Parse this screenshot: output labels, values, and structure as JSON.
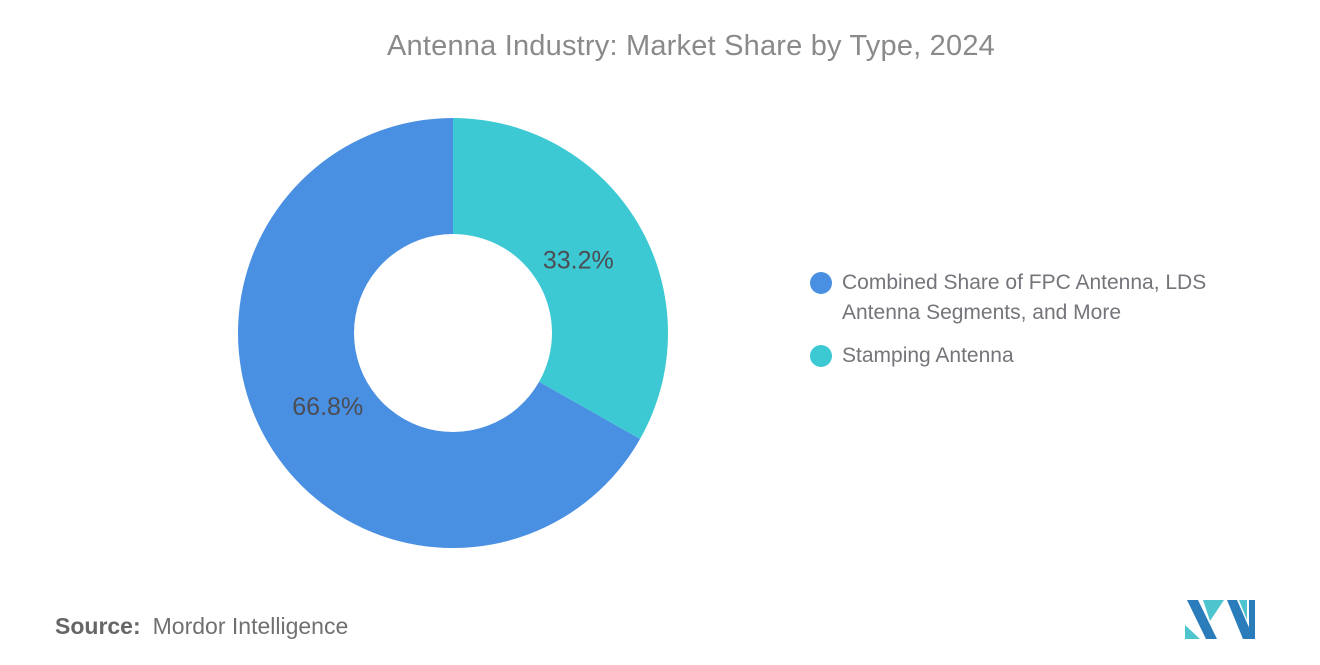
{
  "title": "Antenna Industry: Market Share by Type, 2024",
  "chart_data": {
    "type": "donut",
    "title": "Antenna Industry: Market Share by Type, 2024",
    "slices": [
      {
        "id": "combined",
        "label": "Combined Share of FPC Antenna, LDS Antenna Segments, and More",
        "value": 66.8,
        "pct_label": "66.8%",
        "color": "#4a90e2"
      },
      {
        "id": "stamping",
        "label": "Stamping Antenna",
        "value": 33.2,
        "pct_label": "33.2%",
        "color": "#3cc9d3"
      }
    ],
    "geometry": {
      "outer_radius": 215,
      "inner_radius": 99,
      "label_radius": 145,
      "start_angle": "12-o'clock",
      "note": "stamping slice occupies 0-119.5 deg clockwise from top; slices listed in legend order render counterclockwise from top",
      "legend_position": "right"
    },
    "label_color": "#4b4d53"
  },
  "source": {
    "prefix": "Source:",
    "text": "Mordor Intelligence"
  },
  "branding": {
    "logo_name": "mordor-intelligence-logo",
    "logo_blue": "#2b7cba",
    "logo_teal": "#4ec5ce"
  },
  "colors": {
    "title_text": "#8a8a8a",
    "legend_text": "#74747a",
    "source_text": "#707070",
    "background": "#ffffff"
  }
}
